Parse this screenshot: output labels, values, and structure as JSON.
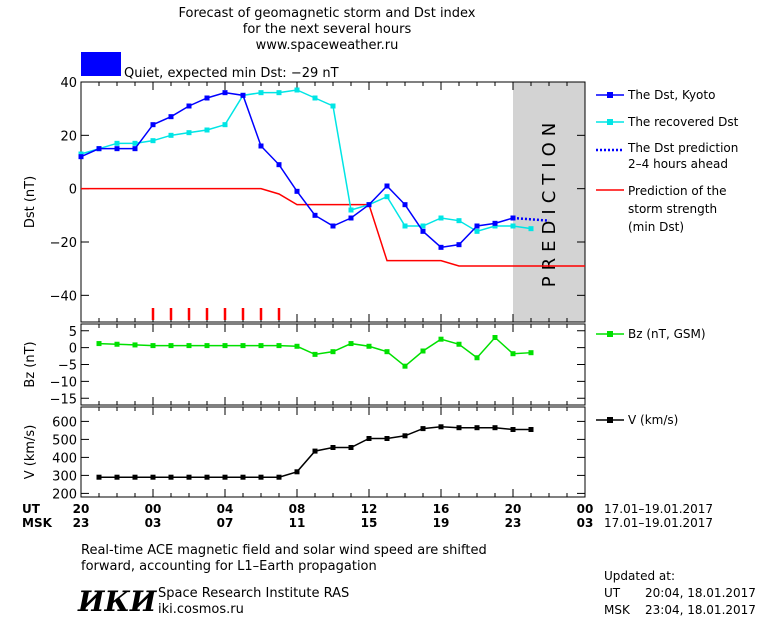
{
  "header": {
    "title_line1": "Forecast of geomagnetic storm and Dst index",
    "title_line2": "for the next several hours",
    "title_line3": "www.spaceweather.ru",
    "status_text": "Quiet, expected min Dst: −29 nT",
    "status_color": "#0000ff"
  },
  "prediction_label": "PREDICTION",
  "legend": {
    "dst_kyoto": "The Dst, Kyoto",
    "dst_recovered": "The recovered Dst",
    "dst_prediction_1": "The Dst prediction",
    "dst_prediction_2": "2–4 hours ahead",
    "strength_1": "Prediction of the",
    "strength_2": "storm strength",
    "strength_3": "(min Dst)",
    "bz": "Bz (nT, GSM)",
    "v": "V (km/s)"
  },
  "time_axis": {
    "ut_label": "UT",
    "msk_label": "MSK",
    "ut_ticks": [
      "20",
      "00",
      "04",
      "08",
      "12",
      "16",
      "20",
      "00"
    ],
    "msk_ticks": [
      "23",
      "03",
      "07",
      "11",
      "15",
      "19",
      "23",
      "03"
    ],
    "ut_range": "17.01–19.01.2017",
    "msk_range": "17.01–19.01.2017"
  },
  "footer": {
    "note_line1": "Real-time ACE magnetic field and solar wind speed are shifted",
    "note_line2": "forward, accounting for L1–Earth propagation",
    "institute": "Space Research Institute RAS",
    "url": "iki.cosmos.ru",
    "logo_text": "ИКИ",
    "updated_label": "Updated at:",
    "updated_ut_label": "UT",
    "updated_ut": "20:04, 18.01.2017",
    "updated_msk_label": "MSK",
    "updated_msk": "23:04, 18.01.2017"
  },
  "chart_data": [
    {
      "type": "line",
      "ylabel": "Dst (nT)",
      "ylim": [
        -50,
        40
      ],
      "yticks": [
        40,
        20,
        0,
        -20,
        -40
      ],
      "xlim_hours": [
        20,
        48
      ],
      "prediction_region_hours": [
        44,
        48
      ],
      "colors": {
        "kyoto": "#0000ff",
        "recovered": "#00e5e5",
        "prediction": "#0000ff",
        "strength": "#ff0000",
        "shade": "#d3d3d3",
        "storm_ticks": "#ff0000"
      },
      "series": [
        {
          "name": "The Dst, Kyoto",
          "x": [
            20,
            21,
            22,
            23,
            24,
            25,
            26,
            27,
            28,
            29,
            30,
            31,
            32,
            33,
            34,
            35,
            36,
            37,
            38,
            39,
            40,
            41,
            42,
            43,
            44
          ],
          "values": [
            12,
            15,
            15,
            15,
            24,
            27,
            31,
            34,
            36,
            35,
            16,
            9,
            -1,
            -10,
            -14,
            -11,
            -6,
            1,
            -6,
            -16,
            -22,
            -21,
            -14,
            -13,
            -11
          ]
        },
        {
          "name": "The recovered Dst",
          "x": [
            20,
            21,
            22,
            23,
            24,
            25,
            26,
            27,
            28,
            29,
            30,
            31,
            32,
            33,
            34,
            35,
            36,
            37,
            38,
            39,
            40,
            41,
            42,
            43,
            44,
            45
          ],
          "values": [
            13,
            15,
            17,
            17,
            18,
            20,
            21,
            22,
            24,
            35,
            36,
            36,
            37,
            34,
            31,
            -8,
            -6,
            -3,
            -14,
            -14,
            -11,
            -12,
            -16,
            -14,
            -14,
            -15
          ]
        },
        {
          "name": "The Dst prediction 2–4 hours ahead",
          "x": [
            44,
            45,
            46
          ],
          "values": [
            -11,
            -11.5,
            -12
          ]
        },
        {
          "name": "Prediction of the storm strength (min Dst)",
          "x": [
            20,
            30,
            31,
            32,
            36,
            37,
            40,
            41,
            48
          ],
          "values": [
            0,
            0,
            -2,
            -6,
            -6,
            -27,
            -27,
            -29,
            -29
          ]
        }
      ],
      "storm_ticks_hours": [
        24,
        25,
        26,
        27,
        28,
        29,
        30,
        31
      ]
    },
    {
      "type": "line",
      "ylabel": "Bz (nT)",
      "ylim": [
        -17,
        7
      ],
      "yticks": [
        5,
        0,
        -5,
        -10,
        -15
      ],
      "color": "#00e000",
      "series": [
        {
          "name": "Bz (nT, GSM)",
          "x": [
            21,
            22,
            23,
            24,
            25,
            26,
            27,
            28,
            29,
            30,
            31,
            32,
            33,
            34,
            35,
            36,
            37,
            38,
            39,
            40,
            41,
            42,
            43,
            44,
            45
          ],
          "values": [
            1.2,
            1.0,
            0.8,
            0.6,
            0.6,
            0.6,
            0.6,
            0.6,
            0.6,
            0.6,
            0.6,
            0.4,
            -2.0,
            -1.2,
            1.2,
            0.4,
            -1.2,
            -5.5,
            -1.0,
            2.5,
            1.0,
            -3.0,
            3.0,
            -1.8,
            -1.5
          ]
        }
      ]
    },
    {
      "type": "line",
      "ylabel": "V (km/s)",
      "ylim": [
        180,
        680
      ],
      "yticks": [
        600,
        500,
        400,
        300,
        200
      ],
      "color": "#000000",
      "series": [
        {
          "name": "V (km/s)",
          "x": [
            21,
            22,
            23,
            24,
            25,
            26,
            27,
            28,
            29,
            30,
            31,
            32,
            33,
            34,
            35,
            36,
            37,
            38,
            39,
            40,
            41,
            42,
            43,
            44,
            45
          ],
          "values": [
            290,
            290,
            290,
            290,
            290,
            290,
            290,
            290,
            290,
            290,
            290,
            320,
            435,
            455,
            455,
            505,
            505,
            520,
            560,
            570,
            565,
            565,
            565,
            555,
            555
          ]
        }
      ]
    }
  ]
}
